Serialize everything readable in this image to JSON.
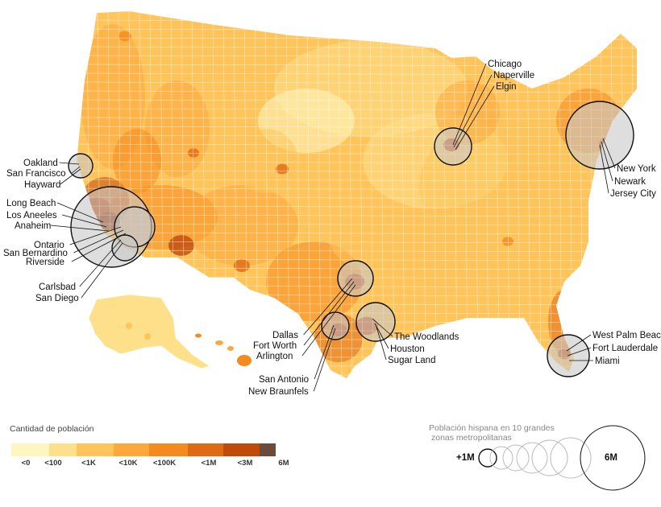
{
  "colors": {
    "ramp": [
      "#fff5bf",
      "#ffe08a",
      "#ffc45a",
      "#fda83a",
      "#f58a1f",
      "#e06a14",
      "#c04a0c",
      "#8e2f06",
      "#6e4a3a"
    ],
    "circle_fill": "#c8c8c8",
    "circle_stroke": "#111111",
    "water": "#ffffff",
    "border": "#ffffff"
  },
  "legend": {
    "title": "Cantidad de población",
    "ticks": [
      "<0",
      "<100",
      "<1K",
      "<10K",
      "<100K",
      "<1M",
      "<3M",
      "6M"
    ]
  },
  "bubble_legend": {
    "title_line1": "Población hispana en 10 grandes",
    "title_line2": "zonas metropolitanas",
    "min_label": "+1M",
    "max_label": "6M"
  },
  "metros": [
    {
      "name": "Los Angeles",
      "population_m": 5.8,
      "labels": [
        "Long Beach",
        "Los Aneeles",
        "Anaheim"
      ]
    },
    {
      "name": "Riverside",
      "population_m": 2.0,
      "labels": [
        "Ontario",
        "San Bernardino",
        "Riverside"
      ]
    },
    {
      "name": "San Francisco",
      "population_m": 1.1,
      "labels": [
        "Oakland",
        "San Francisco",
        "Hayward"
      ]
    },
    {
      "name": "San Diego",
      "population_m": 1.0,
      "labels": [
        "Carlsbad",
        "San Diego"
      ]
    },
    {
      "name": "Chicago",
      "population_m": 2.0,
      "labels": [
        "Chicago",
        "Naperville",
        "Elgin"
      ]
    },
    {
      "name": "New York",
      "population_m": 4.3,
      "labels": [
        "New York",
        "Newark",
        "Jersey City"
      ]
    },
    {
      "name": "Dallas",
      "population_m": 1.7,
      "labels": [
        "Dallas",
        "Fort Worth",
        "Arlington"
      ]
    },
    {
      "name": "Houston",
      "population_m": 2.1,
      "labels": [
        "The Woodlands",
        "Houston",
        "Sugar Land"
      ]
    },
    {
      "name": "San Antonio",
      "population_m": 1.1,
      "labels": [
        "San Antonio",
        "New Braunfels"
      ]
    },
    {
      "name": "Miami",
      "population_m": 2.5,
      "labels": [
        "West Palm Beach",
        "Fort Lauderdale",
        "Miami"
      ]
    }
  ]
}
